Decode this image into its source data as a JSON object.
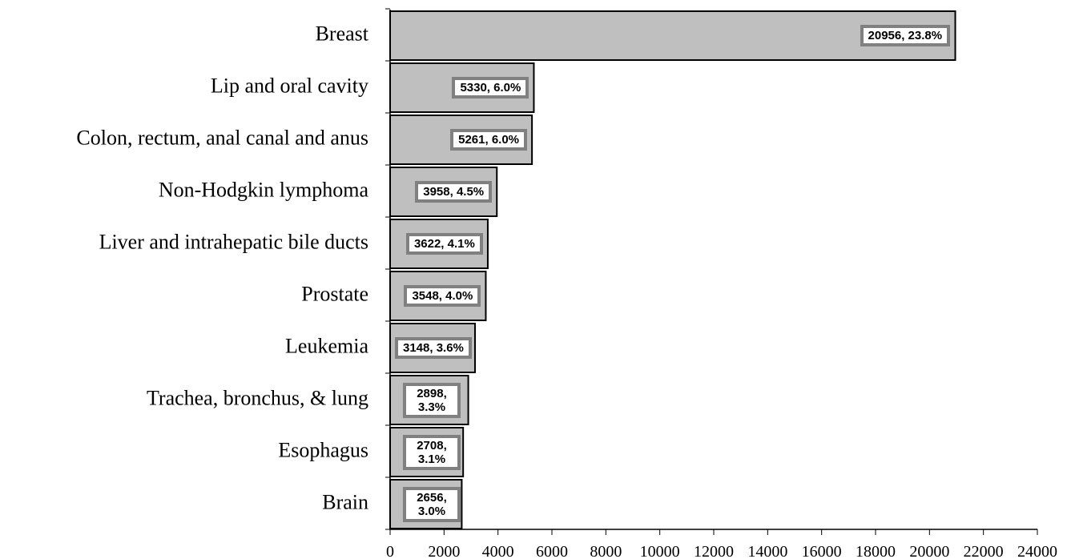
{
  "chart_data": {
    "type": "bar",
    "orientation": "horizontal",
    "categories": [
      "Breast",
      "Lip and oral cavity",
      "Colon, rectum, anal canal and anus",
      "Non-Hodgkin lymphoma",
      "Liver and intrahepatic bile ducts",
      "Prostate",
      "Leukemia",
      "Trachea, bronchus, & lung",
      "Esophagus",
      "Brain"
    ],
    "values": [
      20956,
      5330,
      5261,
      3958,
      3622,
      3548,
      3148,
      2898,
      2708,
      2656
    ],
    "value_labels": [
      "20956, 23.8%",
      "5330, 6.0%",
      "5261, 6.0%",
      "3958, 4.5%",
      "3622, 4.1%",
      "3548, 4.0%",
      "3148, 3.6%",
      "2898, 3.3%",
      "2708, 3.1%",
      "2656, 3.0%"
    ],
    "color": "#bfbfbf",
    "xlim": [
      0,
      24000
    ],
    "xticks": [
      0,
      2000,
      4000,
      6000,
      8000,
      10000,
      12000,
      14000,
      16000,
      18000,
      20000,
      22000,
      24000
    ],
    "grid": false
  }
}
